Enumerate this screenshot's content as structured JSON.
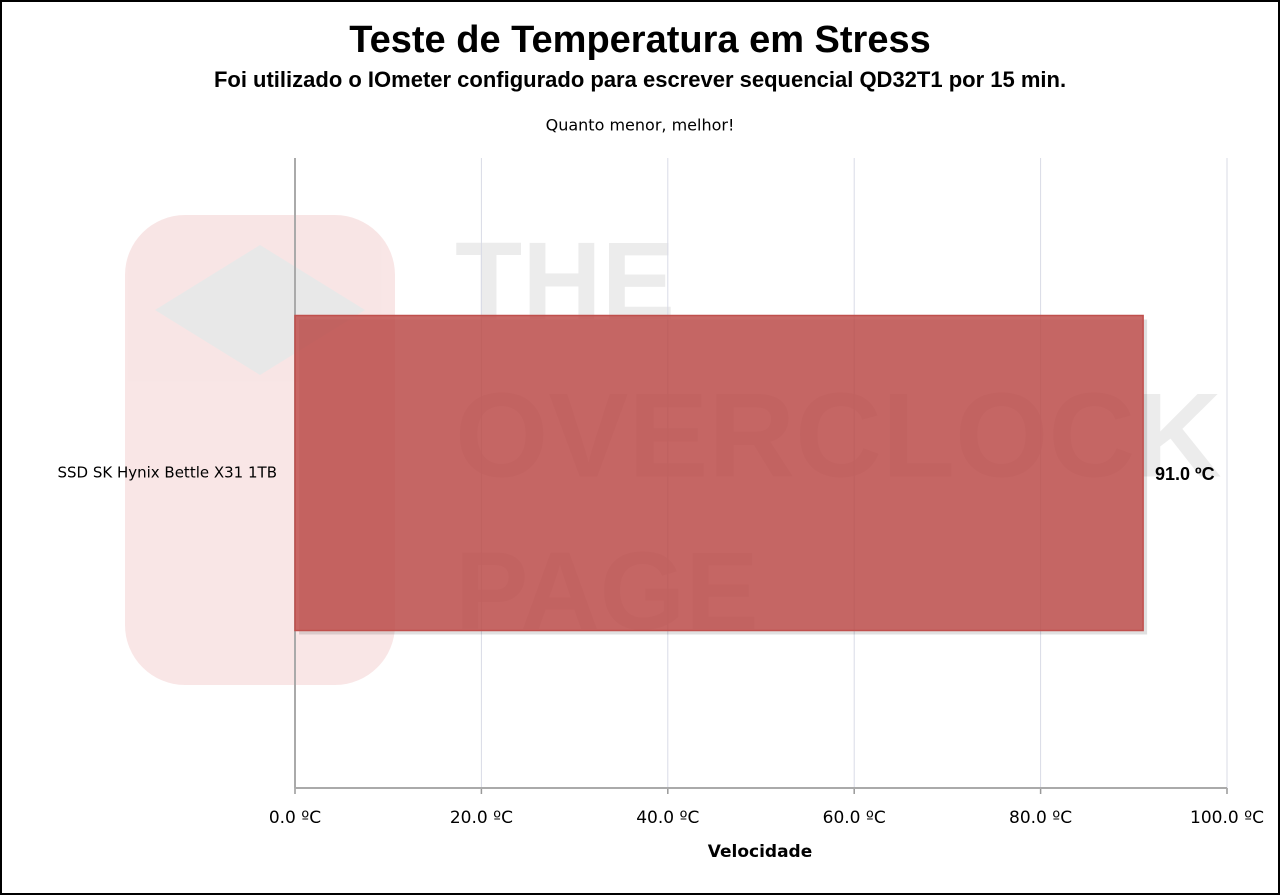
{
  "chart_data": {
    "type": "bar",
    "orientation": "horizontal",
    "title": "Teste de Temperatura em Stress",
    "subtitle": "Foi utilizado o IOmeter  configurado para escrever sequencial QD32T1 por 15 min.",
    "annotation": "Quanto menor, melhor!",
    "watermark": [
      "THE",
      "OVERCLOCK",
      "PAGE"
    ],
    "categories": [
      "SSD SK Hynix Bettle  X31 1TB"
    ],
    "values": [
      91.0
    ],
    "value_labels": [
      "91.0 ºC"
    ],
    "color": "#c0504d",
    "xlabel": "Velocidade",
    "xlim": [
      0,
      100
    ],
    "xticks": [
      {
        "value": 0,
        "label": "0.0 ºC"
      },
      {
        "value": 20,
        "label": "20.0 ºC"
      },
      {
        "value": 40,
        "label": "40.0 ºC"
      },
      {
        "value": 60,
        "label": "60.0 ºC"
      },
      {
        "value": 80,
        "label": "80.0 ºC"
      },
      {
        "value": 100,
        "label": "100.0 ºC"
      }
    ],
    "grid": true
  }
}
